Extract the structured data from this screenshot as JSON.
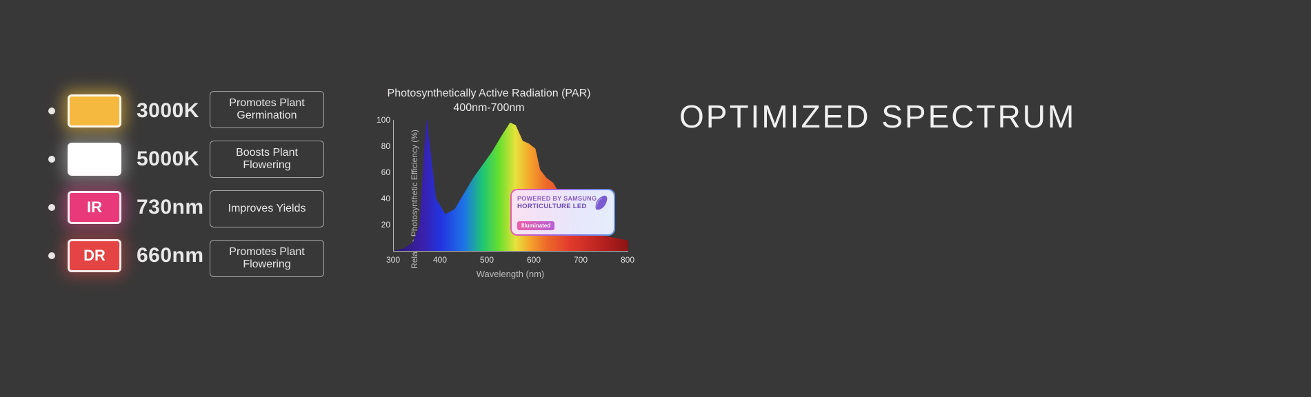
{
  "background_color": "#393838",
  "headline": "OPTIMIZED SPECTRUM",
  "leds": [
    {
      "label": "3000K",
      "chip_text": "",
      "chip_bg": "#f5b940",
      "glow_class": "glow-y"
    },
    {
      "label": "5000K",
      "chip_text": "",
      "chip_bg": "#ffffff",
      "glow_class": "glow-w"
    },
    {
      "label": "730nm",
      "chip_text": "IR",
      "chip_bg": "#e83a7a",
      "glow_class": "glow-p"
    },
    {
      "label": "660nm",
      "chip_text": "DR",
      "chip_bg": "#e54444",
      "glow_class": "glow-r"
    }
  ],
  "benefits": [
    "Promotes Plant Germination",
    "Boosts Plant Flowering",
    "Improves Yields",
    "Promotes Plant Flowering"
  ],
  "chart": {
    "title_line1": "Photosynthetically Active Radiation (PAR)",
    "title_line2": "400nm-700nm",
    "ylabel": "Relative Photosynthetic Efficiency (%)",
    "xlabel": "Wavelength (nm)",
    "xlim": [
      300,
      800
    ],
    "ylim": [
      0,
      100
    ],
    "xticks": [
      300,
      400,
      500,
      600,
      700,
      800
    ],
    "yticks": [
      20,
      40,
      60,
      80,
      100
    ],
    "axis_color": "#b8b8b8",
    "curve_points": [
      [
        300,
        0
      ],
      [
        320,
        2
      ],
      [
        340,
        6
      ],
      [
        355,
        20
      ],
      [
        365,
        78
      ],
      [
        370,
        102
      ],
      [
        378,
        78
      ],
      [
        390,
        40
      ],
      [
        410,
        28
      ],
      [
        430,
        32
      ],
      [
        450,
        44
      ],
      [
        470,
        56
      ],
      [
        490,
        66
      ],
      [
        510,
        76
      ],
      [
        530,
        88
      ],
      [
        548,
        98
      ],
      [
        560,
        96
      ],
      [
        575,
        84
      ],
      [
        588,
        82
      ],
      [
        602,
        78
      ],
      [
        612,
        62
      ],
      [
        625,
        56
      ],
      [
        640,
        52
      ],
      [
        660,
        40
      ],
      [
        685,
        30
      ],
      [
        710,
        20
      ],
      [
        740,
        12
      ],
      [
        770,
        10
      ],
      [
        800,
        8
      ]
    ],
    "gradient_stops": [
      {
        "pct": 0,
        "color": "#2b1a6a"
      },
      {
        "pct": 12,
        "color": "#3a1fa8"
      },
      {
        "pct": 20,
        "color": "#2233e0"
      },
      {
        "pct": 30,
        "color": "#1e74e6"
      },
      {
        "pct": 38,
        "color": "#1fc772"
      },
      {
        "pct": 45,
        "color": "#6adf2e"
      },
      {
        "pct": 52,
        "color": "#e8e23a"
      },
      {
        "pct": 58,
        "color": "#f4a52c"
      },
      {
        "pct": 65,
        "color": "#ed6a2a"
      },
      {
        "pct": 75,
        "color": "#e23b2c"
      },
      {
        "pct": 90,
        "color": "#b41f1f"
      },
      {
        "pct": 100,
        "color": "#8c1414"
      }
    ]
  },
  "badge": {
    "line1": "POWERED BY SAMSUNG",
    "line2": "HORTICULTURE LED",
    "sub": "Illuminated"
  }
}
